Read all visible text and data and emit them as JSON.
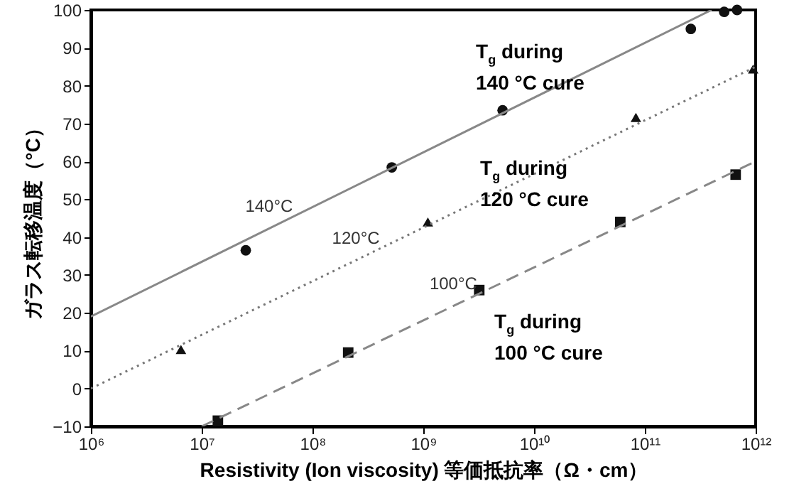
{
  "chart_data": {
    "type": "scatter",
    "xlabel": "Resistivity (Ion viscosity) 等価抵抗率（Ω・cm）",
    "ylabel": "ガラス転移温度（°C）",
    "log": "x",
    "grid": false,
    "xlim": [
      1000000,
      1000000000000
    ],
    "ylim": [
      -10,
      100
    ],
    "xticks": [
      {
        "value": 1000000,
        "label": "10⁶"
      },
      {
        "value": 10000000,
        "label": "10⁷"
      },
      {
        "value": 100000000,
        "label": "10⁸"
      },
      {
        "value": 1000000000,
        "label": "10⁹"
      },
      {
        "value": 10000000000,
        "label": "10¹⁰"
      },
      {
        "value": 100000000000,
        "label": "10¹¹"
      },
      {
        "value": 1000000000000,
        "label": "10¹²"
      }
    ],
    "yticks": [
      -10,
      0,
      10,
      20,
      30,
      40,
      50,
      60,
      70,
      80,
      90,
      100
    ],
    "series": [
      {
        "marker": "circle",
        "color": "#111111",
        "x": [
          25000000,
          520000000,
          5200000000,
          260000000000,
          520000000000,
          680000000000
        ],
        "values": [
          36.5,
          58.4,
          73.5,
          95,
          99.5,
          100
        ]
      },
      {
        "marker": "triangle",
        "color": "#111111",
        "x": [
          6500000,
          1100000000,
          83000000000,
          950000000000
        ],
        "values": [
          10.3,
          44,
          71.6,
          84.4
        ]
      },
      {
        "marker": "square",
        "color": "#111111",
        "x": [
          14000000,
          210000000,
          3200000000,
          60000000000,
          660000000000
        ],
        "values": [
          -8.5,
          9.5,
          26,
          44,
          56.5
        ]
      },
      {
        "type": "line",
        "name": "140°C",
        "line_style": "solid",
        "color": "#888888",
        "x": [
          1000000,
          400000000000
        ],
        "values": [
          19,
          100
        ]
      },
      {
        "type": "line",
        "name": "120°C",
        "line_style": "dotted",
        "color": "#777777",
        "x": [
          1000000,
          1000000000000
        ],
        "values": [
          0,
          85
        ]
      },
      {
        "type": "line",
        "name": "100°C",
        "line_style": "dashed",
        "color": "#888888",
        "x": [
          10000000,
          1000000000000
        ],
        "values": [
          -10,
          60
        ]
      }
    ],
    "annotations": [
      "T$_{g}$ during 140 °C cure",
      "T$_{g}$ during 120 °C cure",
      "T$_{g}$ during 100 °C cure"
    ]
  }
}
